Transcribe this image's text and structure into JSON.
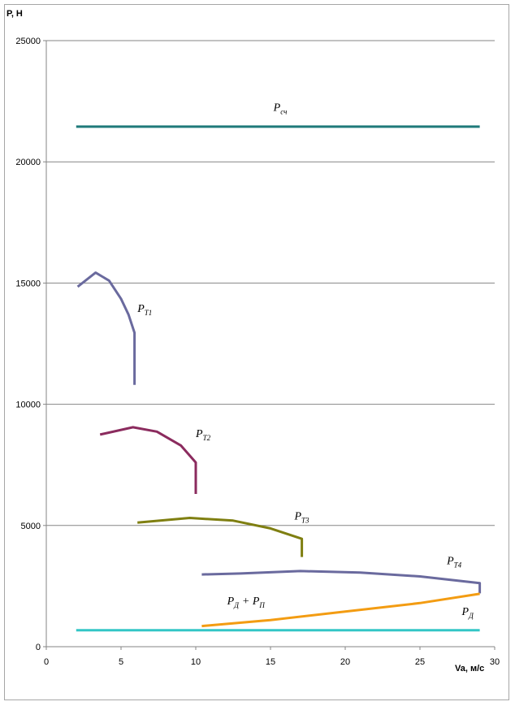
{
  "chart_data": {
    "type": "line",
    "ylabel": "Р, Н",
    "xlabel": "Va, м/с",
    "xlim": [
      0,
      30
    ],
    "ylim": [
      0,
      25000
    ],
    "x_ticks": [
      "0",
      "5",
      "10",
      "15",
      "20",
      "25",
      "30"
    ],
    "y_ticks": [
      "0",
      "5000",
      "10000",
      "15000",
      "20000",
      "25000"
    ],
    "grid": "horizontal",
    "legend": "none",
    "series": [
      {
        "id": "psch",
        "label_main": "P",
        "label_sub": "сч",
        "label_at": [
          15.2,
          22100
        ],
        "color": "#1f7a7a",
        "points": [
          [
            2,
            21450
          ],
          [
            29,
            21450
          ]
        ]
      },
      {
        "id": "pt1",
        "label_main": "P",
        "label_sub": "T1",
        "label_at": [
          6.1,
          13800
        ],
        "color": "#6a6a9e",
        "points": [
          [
            2.1,
            14850
          ],
          [
            3.3,
            15430
          ],
          [
            4.2,
            15100
          ],
          [
            5.0,
            14350
          ],
          [
            5.5,
            13700
          ],
          [
            5.9,
            12950
          ],
          [
            5.9,
            10800
          ]
        ]
      },
      {
        "id": "pt2",
        "label_main": "P",
        "label_sub": "T2",
        "label_at": [
          10.0,
          8650
        ],
        "color": "#8b2b5e",
        "points": [
          [
            3.6,
            8750
          ],
          [
            5.8,
            9050
          ],
          [
            7.4,
            8870
          ],
          [
            9.0,
            8300
          ],
          [
            10.0,
            7600
          ],
          [
            10.0,
            6300
          ]
        ]
      },
      {
        "id": "pt3",
        "label_main": "P",
        "label_sub": "T3",
        "label_at": [
          16.6,
          5250
        ],
        "color": "#7f7f11",
        "points": [
          [
            6.1,
            5120
          ],
          [
            9.6,
            5310
          ],
          [
            12.5,
            5200
          ],
          [
            15.0,
            4880
          ],
          [
            17.1,
            4450
          ],
          [
            17.1,
            3700
          ]
        ]
      },
      {
        "id": "pt4",
        "label_main": "P",
        "label_sub": "T4",
        "label_at": [
          26.8,
          3400
        ],
        "color": "#6a6a9e",
        "points": [
          [
            10.4,
            2980
          ],
          [
            13.0,
            3020
          ],
          [
            17.0,
            3120
          ],
          [
            21.0,
            3060
          ],
          [
            25.0,
            2900
          ],
          [
            29.0,
            2620
          ],
          [
            29.0,
            2200
          ]
        ]
      },
      {
        "id": "pd_pp",
        "label_main": "P",
        "label_sub": "Д",
        "label_extra": "+ P",
        "label_extra_sub": "П",
        "label_at": [
          12.1,
          1750
        ],
        "color": "#f39c12",
        "points": [
          [
            10.4,
            850
          ],
          [
            15.0,
            1100
          ],
          [
            20.0,
            1450
          ],
          [
            25.0,
            1800
          ],
          [
            29.0,
            2180
          ]
        ]
      },
      {
        "id": "pd",
        "label_main": "P",
        "label_sub": "Д",
        "label_at": [
          27.8,
          1300
        ],
        "color": "#33c6c6",
        "points": [
          [
            2,
            680
          ],
          [
            29,
            680
          ]
        ]
      }
    ]
  }
}
